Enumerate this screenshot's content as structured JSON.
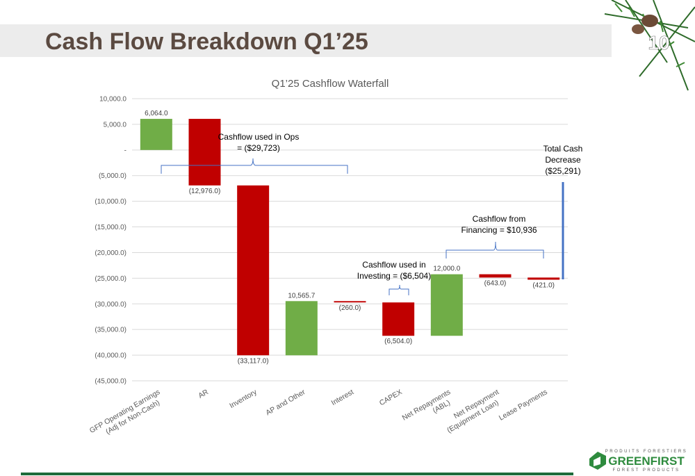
{
  "slide": {
    "title": "Cash Flow Breakdown Q1’25",
    "page_number": "10",
    "logo": {
      "top": "PRODUITS FORESTIERS",
      "name": "GREENFIRST",
      "bottom": "FOREST PRODUCTS"
    }
  },
  "chart_data": {
    "type": "waterfall",
    "title": "Q1’25 Cashflow Waterfall",
    "categories": [
      [
        "GFP Operating Earnings",
        "(Adj for Non-Cash)"
      ],
      [
        "AR"
      ],
      [
        "Inventory"
      ],
      [
        "AP and Other"
      ],
      [
        "Interest"
      ],
      [
        "CAPEX"
      ],
      [
        "Net Repayments",
        "(ABL)"
      ],
      [
        "Net Repayment",
        "(Equipment Loan)"
      ],
      [
        "Lease Payments"
      ]
    ],
    "values": [
      6064.0,
      -12976.0,
      -33117.0,
      10565.7,
      -260.0,
      -6504.0,
      12000.0,
      -643.0,
      -421.0
    ],
    "value_labels": [
      "6,064.0",
      "(12,976.0)",
      "(33,117.0)",
      "10,565.7",
      "(260.0)",
      "(6,504.0)",
      "12,000.0",
      "(643.0)",
      "(421.0)"
    ],
    "colors": [
      "#70ad47",
      "#c00000",
      "#c00000",
      "#70ad47",
      "#c00000",
      "#c00000",
      "#70ad47",
      "#c00000",
      "#c00000"
    ],
    "ylim": [
      -45000,
      10000
    ],
    "yticks": [
      {
        "value": 10000,
        "label": "10,000.0"
      },
      {
        "value": 5000,
        "label": "5,000.0"
      },
      {
        "value": 0,
        "label": "-"
      },
      {
        "value": -5000,
        "label": "(5,000.0)"
      },
      {
        "value": -10000,
        "label": "(10,000.0)"
      },
      {
        "value": -15000,
        "label": "(15,000.0)"
      },
      {
        "value": -20000,
        "label": "(20,000.0)"
      },
      {
        "value": -25000,
        "label": "(25,000.0)"
      },
      {
        "value": -30000,
        "label": "(30,000.0)"
      },
      {
        "value": -35000,
        "label": "(35,000.0)"
      },
      {
        "value": -40000,
        "label": "(40,000.0)"
      },
      {
        "value": -45000,
        "label": "(45,000.0)"
      }
    ],
    "grid": true,
    "annotations": [
      [
        "Cashflow used in Ops",
        "= ($29,723)"
      ],
      [
        "Cashflow used in",
        "Investing = ($6,504)"
      ],
      [
        "Cashflow from",
        "Financing = $10,936"
      ],
      [
        "Total Cash",
        "Decrease",
        "($25,291)"
      ]
    ]
  }
}
